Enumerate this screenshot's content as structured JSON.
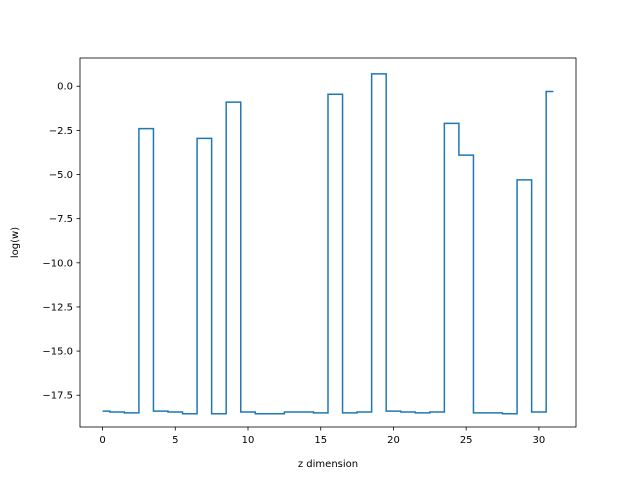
{
  "chart_data": {
    "type": "line",
    "drawstyle": "steps-mid",
    "title": "",
    "xlabel": "z dimension",
    "ylabel": "log(w)",
    "xlim": [
      -1.55,
      32.55
    ],
    "ylim": [
      -19.3,
      1.6
    ],
    "xticks": [
      0,
      5,
      10,
      15,
      20,
      25,
      30
    ],
    "xtick_labels": [
      "0",
      "5",
      "10",
      "15",
      "20",
      "25",
      "30"
    ],
    "yticks": [
      0.0,
      -2.5,
      -5.0,
      -7.5,
      -10.0,
      -12.5,
      -15.0,
      -17.5
    ],
    "ytick_labels": [
      "0.0",
      "−2.5",
      "−5.0",
      "−7.5",
      "−10.0",
      "−12.5",
      "−15.0",
      "−17.5"
    ],
    "grid": false,
    "legend": null,
    "line_color": "#1f77b4",
    "series": [
      {
        "x": [
          0,
          1,
          2,
          3,
          4,
          5,
          6,
          7,
          8,
          9,
          10,
          11,
          12,
          13,
          14,
          15,
          16,
          17,
          18,
          19,
          20,
          21,
          22,
          23,
          24,
          25,
          26,
          27,
          28,
          29,
          30,
          31
        ],
        "values": [
          -18.4,
          -18.45,
          -18.5,
          -2.4,
          -18.4,
          -18.45,
          -18.55,
          -2.95,
          -18.55,
          -0.9,
          -18.45,
          -18.55,
          -18.55,
          -18.45,
          -18.45,
          -18.5,
          -0.45,
          -18.5,
          -18.45,
          0.7,
          -18.4,
          -18.45,
          -18.5,
          -18.45,
          -2.1,
          -3.9,
          -18.5,
          -18.5,
          -18.55,
          -5.3,
          -18.45,
          -0.3
        ]
      }
    ]
  }
}
